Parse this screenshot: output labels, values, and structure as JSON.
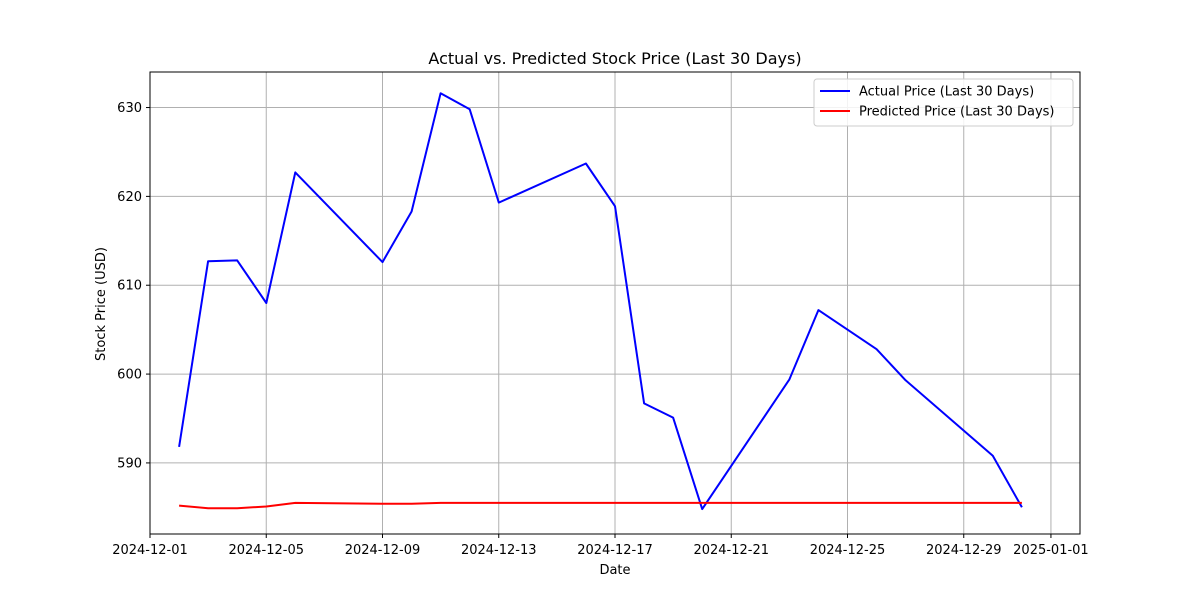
{
  "chart_data": {
    "type": "line",
    "title": "Actual vs. Predicted Stock Price (Last 30 Days)",
    "xlabel": "Date",
    "ylabel": "Stock Price (USD)",
    "xlim": [
      "2024-12-01",
      "2025-01-02"
    ],
    "ylim": [
      582,
      634
    ],
    "x_ticks": [
      "2024-12-01",
      "2024-12-05",
      "2024-12-09",
      "2024-12-13",
      "2024-12-17",
      "2024-12-21",
      "2024-12-25",
      "2024-12-29",
      "2025-01-01"
    ],
    "y_ticks": [
      590,
      600,
      610,
      620,
      630
    ],
    "grid": true,
    "legend_position": "top-right",
    "series": [
      {
        "name": "Actual Price (Last 30 Days)",
        "color": "#0000ff",
        "x": [
          "2024-12-02",
          "2024-12-03",
          "2024-12-04",
          "2024-12-05",
          "2024-12-06",
          "2024-12-09",
          "2024-12-10",
          "2024-12-11",
          "2024-12-12",
          "2024-12-13",
          "2024-12-16",
          "2024-12-17",
          "2024-12-18",
          "2024-12-19",
          "2024-12-20",
          "2024-12-23",
          "2024-12-24",
          "2024-12-26",
          "2024-12-27",
          "2024-12-30",
          "2024-12-31"
        ],
        "values": [
          591.8,
          612.7,
          612.8,
          608.0,
          622.7,
          612.6,
          618.3,
          631.6,
          629.8,
          619.3,
          623.7,
          618.9,
          596.7,
          595.1,
          584.8,
          599.4,
          607.2,
          602.8,
          599.3,
          590.8,
          585.0
        ]
      },
      {
        "name": "Predicted Price (Last 30 Days)",
        "color": "#ff0000",
        "x": [
          "2024-12-02",
          "2024-12-03",
          "2024-12-04",
          "2024-12-05",
          "2024-12-06",
          "2024-12-09",
          "2024-12-10",
          "2024-12-11",
          "2024-12-12",
          "2024-12-13",
          "2024-12-16",
          "2024-12-17",
          "2024-12-18",
          "2024-12-19",
          "2024-12-20",
          "2024-12-23",
          "2024-12-24",
          "2024-12-26",
          "2024-12-27",
          "2024-12-30",
          "2024-12-31"
        ],
        "values": [
          585.2,
          584.9,
          584.9,
          585.1,
          585.5,
          585.4,
          585.4,
          585.5,
          585.5,
          585.5,
          585.5,
          585.5,
          585.5,
          585.5,
          585.5,
          585.5,
          585.5,
          585.5,
          585.5,
          585.5,
          585.5
        ]
      }
    ]
  }
}
